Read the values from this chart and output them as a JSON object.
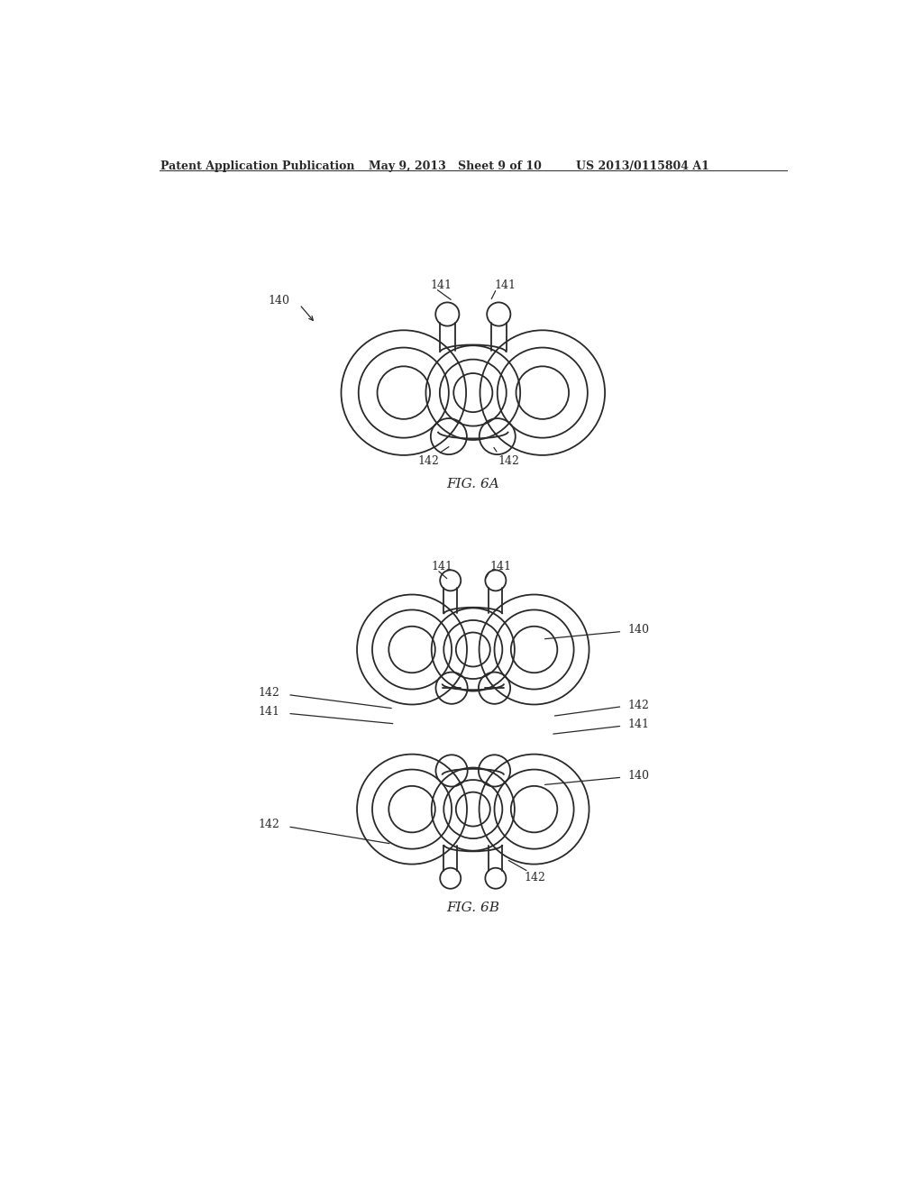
{
  "background_color": "#ffffff",
  "line_color": "#2a2a2a",
  "line_width": 1.3,
  "header_text": "Patent Application Publication",
  "header_date": "May 9, 2013",
  "header_sheet": "Sheet 9 of 10",
  "header_patent": "US 2013/0115804 A1",
  "fig6a_label": "FIG. 6A",
  "fig6b_label": "FIG. 6B",
  "font_size_header": 9,
  "font_size_label": 9,
  "font_size_fig": 11
}
